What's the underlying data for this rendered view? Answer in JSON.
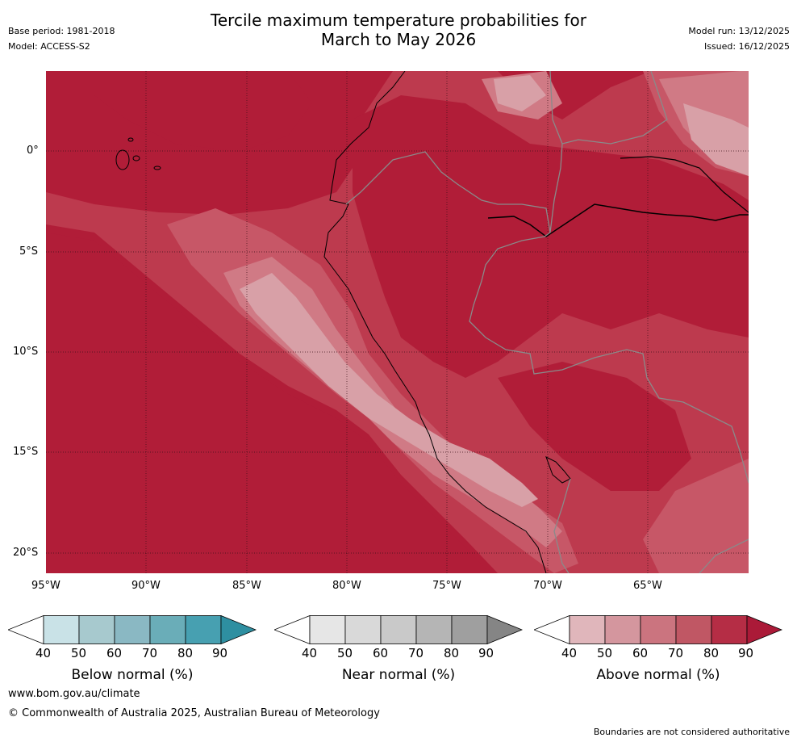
{
  "header": {
    "title_line1": "Tercile maximum temperature probabilities for",
    "title_line2": "March to May 2026",
    "base_period": "Base period: 1981-2018",
    "model": "Model: ACCESS-S2",
    "model_run": "Model run: 13/12/2025",
    "issued": "Issued: 16/12/2025"
  },
  "map": {
    "lat_labels": [
      "0°",
      "5°S",
      "10°S",
      "15°S",
      "20°S"
    ],
    "lon_labels": [
      "95°W",
      "90°W",
      "85°W",
      "80°W",
      "75°W",
      "70°W",
      "65°W"
    ],
    "colors": {
      "a90": "#b11d38",
      "a80": "#bd3a4e",
      "a70": "#c75767",
      "a60": "#d07a85",
      "a50": "#d8a0a7",
      "border": "#8a8a8a",
      "grid": "#3a1018"
    }
  },
  "legends": [
    {
      "label": "Below normal (%)",
      "ticks": [
        "40",
        "50",
        "60",
        "70",
        "80",
        "90"
      ],
      "colors": [
        "#ffffff",
        "#c9e2e7",
        "#a7c9ce",
        "#8ab8c3",
        "#6aadb8",
        "#47a0b1",
        "#2e8fa1"
      ]
    },
    {
      "label": "Near normal (%)",
      "ticks": [
        "40",
        "50",
        "60",
        "70",
        "80",
        "90"
      ],
      "colors": [
        "#ffffff",
        "#e6e6e6",
        "#d9d9d9",
        "#c9c9c9",
        "#b5b5b5",
        "#9f9f9f",
        "#858585"
      ]
    },
    {
      "label": "Above normal (%)",
      "ticks": [
        "40",
        "50",
        "60",
        "70",
        "80",
        "90"
      ],
      "colors": [
        "#ffffff",
        "#e0b6bb",
        "#d4969e",
        "#cb747f",
        "#c05764",
        "#b52d45",
        "#ab1a38"
      ]
    }
  ],
  "footer": {
    "website": "www.bom.gov.au/climate",
    "copyright": "© Commonwealth of Australia 2025, Australian Bureau of Meteorology",
    "disclaimer": "Boundaries are not considered authoritative"
  }
}
